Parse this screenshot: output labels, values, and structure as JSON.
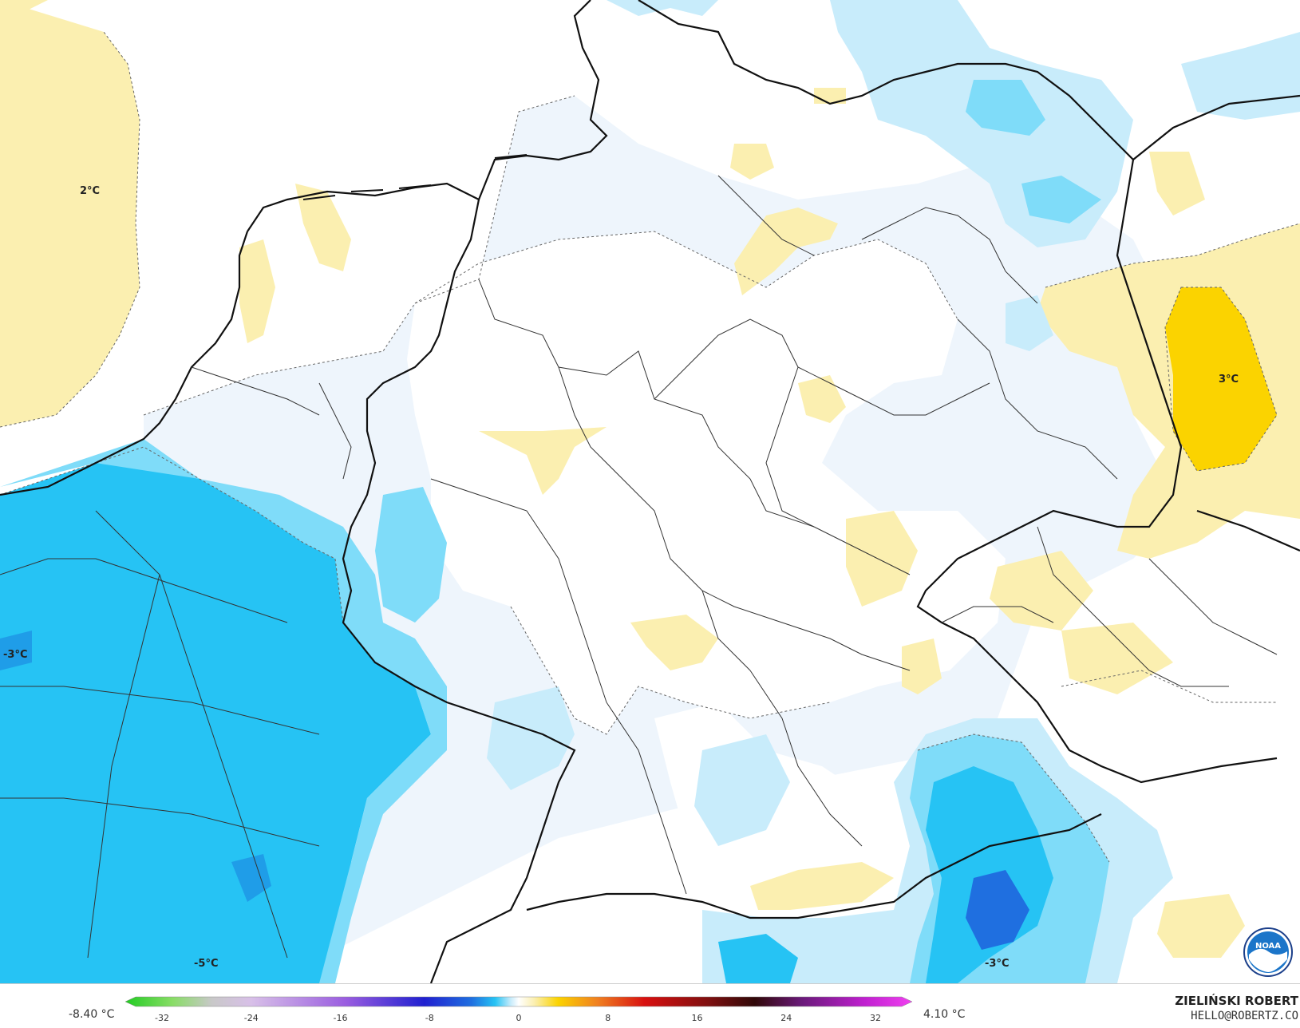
{
  "map": {
    "contour_labels": [
      {
        "id": "label-2c",
        "text": "2°C"
      },
      {
        "id": "label-3c-east",
        "text": "3°C"
      },
      {
        "id": "label-minus3c-west",
        "text": "-3°C"
      },
      {
        "id": "label-minus5c",
        "text": "-5°C"
      },
      {
        "id": "label-minus3c-south",
        "text": "-3°C"
      }
    ]
  },
  "legend": {
    "min_value": "-8.40 °C",
    "max_value": "4.10 °C",
    "ticks": [
      "-32",
      "-24",
      "-16",
      "-8",
      "0",
      "8",
      "16",
      "24",
      "32"
    ]
  },
  "credits": {
    "author": "ZIELIŃSKI ROBERT",
    "email": "HELLO@ROBERTZ.CO",
    "logo_text": "NOAA"
  },
  "colors": {
    "warm_light": "#fbefb0",
    "warm_strong": "#fbd300",
    "cold_lightest": "#eef5fc",
    "cold_light": "#c8ecfb",
    "cold_mid": "#7fdcf9",
    "cold_strong": "#26c3f4",
    "cold_deep": "#1f6fe0"
  }
}
